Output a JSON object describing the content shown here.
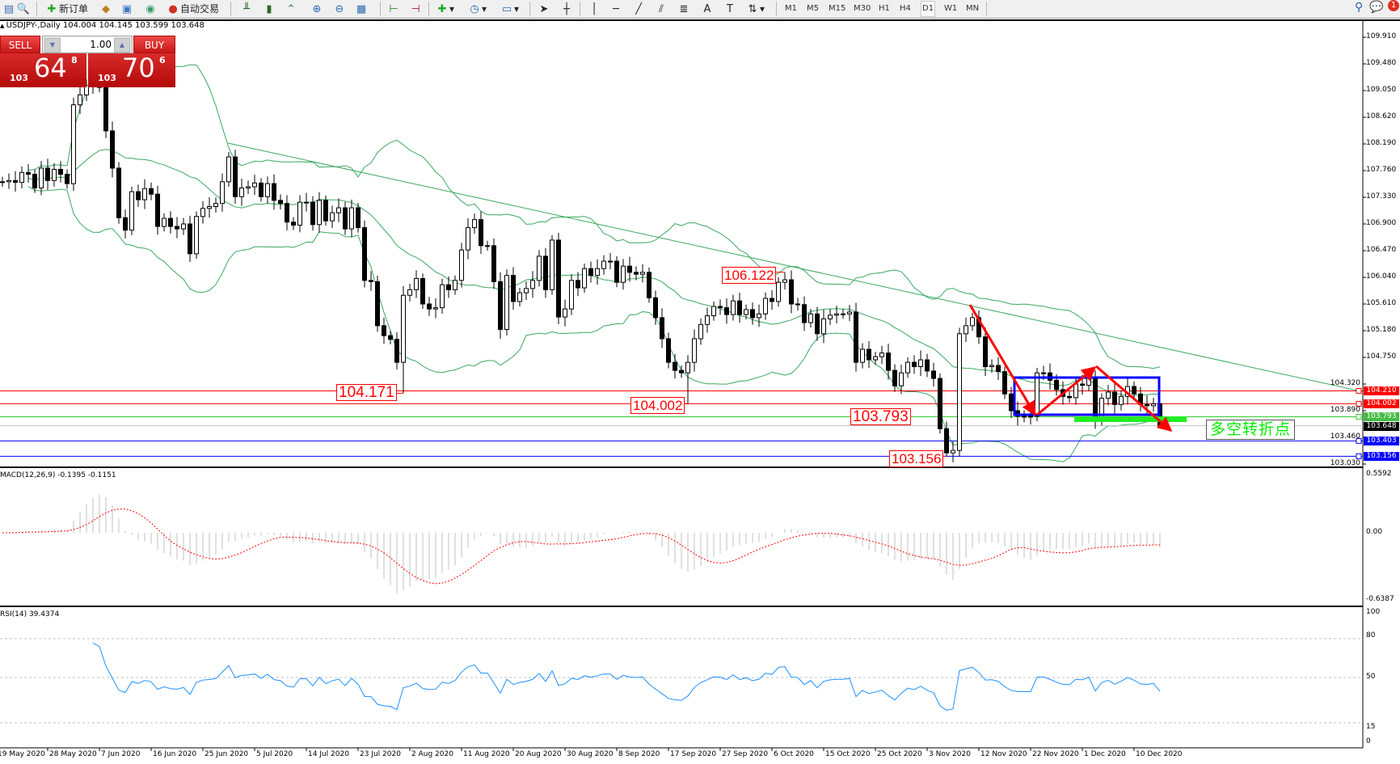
{
  "toolbar": {
    "new_order_label": "新订单",
    "auto_trading_label": "自动交易",
    "icons": [
      "market-watch-icon",
      "data-window-icon",
      "new-order-icon",
      "strategy-tester-icon",
      "terminal-icon",
      "signals-icon",
      "auto-trading-icon",
      "bar-chart-icon",
      "candlesticks-icon",
      "line-chart-icon",
      "zoom-in-icon",
      "zoom-out-icon",
      "tile-windows-icon",
      "auto-scroll-icon",
      "chart-shift-icon",
      "indicators-icon",
      "periods-icon",
      "templates-icon",
      "cursor-icon",
      "crosshair-icon",
      "vertical-line-icon",
      "horizontal-line-icon",
      "trendline-icon",
      "equidistant-channel-icon",
      "fibonacci-icon",
      "text-icon",
      "text-label-icon",
      "arrows-icon",
      "search-icon",
      "notifications-icon"
    ],
    "timeframes": [
      "M1",
      "M5",
      "M15",
      "M30",
      "H1",
      "H4",
      "D1",
      "W1",
      "MN"
    ],
    "active_timeframe": "D1",
    "notification_count": "1"
  },
  "chart": {
    "symbol_header": "USDJPY-,Daily  104.004 104.145 103.599 103.648",
    "oneclick": {
      "sell_label": "SELL",
      "buy_label": "BUY",
      "volume": "1.00",
      "sell_prefix": "103",
      "sell_big": "64",
      "sell_sup": "8",
      "buy_prefix": "103",
      "buy_big": "70",
      "buy_sup": "6"
    },
    "note_text": "多空转折点",
    "macd_label": "MACD(12,26,9) -0.1395 -0.1151",
    "rsi_label": "RSI(14) 39.4374",
    "macd_axis": [
      "0.5592",
      "0.00",
      "-0.6387"
    ],
    "rsi_axis": [
      "100",
      "80",
      "50",
      "15",
      "0"
    ],
    "colors": {
      "bands": "#3aa860",
      "trendline": "#3aa860",
      "rsi": "#1e90ff",
      "macd_hist": "#c0c0c0",
      "signal": "#ff0000",
      "up_line": "#ff0000",
      "box": "#0000ff",
      "pivot_bar": "#22ee22"
    }
  },
  "chart_data": {
    "type": "candlestick",
    "symbol": "USDJPY-",
    "timeframe": "Daily",
    "ylim": [
      103.03,
      109.91
    ],
    "y_ticks": [
      "109.910",
      "109.480",
      "109.050",
      "108.620",
      "108.190",
      "107.760",
      "107.330",
      "106.900",
      "106.470",
      "106.040",
      "105.610",
      "105.180",
      "104.750",
      "104.320",
      "103.890",
      "103.460",
      "103.030"
    ],
    "x_tick_labels": [
      "19 May 2020",
      "28 May 2020",
      "7 Jun 2020",
      "16 Jun 2020",
      "25 Jun 2020",
      "5 Jul 2020",
      "14 Jul 2020",
      "23 Jul 2020",
      "2 Aug 2020",
      "11 Aug 2020",
      "20 Aug 2020",
      "30 Aug 2020",
      "8 Sep 2020",
      "17 Sep 2020",
      "27 Sep 2020",
      "6 Oct 2020",
      "15 Oct 2020",
      "25 Oct 2020",
      "3 Nov 2020",
      "12 Nov 2020",
      "22 Nov 2020",
      "1 Dec 2020",
      "10 Dec 2020"
    ],
    "last_bar": {
      "open": 104.004,
      "high": 104.145,
      "low": 103.599,
      "close": 103.648
    },
    "closes": [
      107.58,
      107.6,
      107.57,
      107.73,
      107.7,
      107.48,
      107.8,
      107.6,
      107.78,
      107.7,
      107.55,
      108.82,
      108.98,
      109.13,
      109.2,
      109.1,
      108.4,
      107.8,
      107.0,
      106.8,
      107.42,
      107.29,
      107.47,
      107.38,
      106.86,
      106.99,
      106.86,
      106.82,
      106.9,
      106.42,
      107.02,
      107.15,
      107.18,
      107.23,
      107.58,
      107.98,
      107.34,
      107.48,
      107.5,
      107.56,
      107.34,
      107.55,
      107.28,
      107.23,
      106.93,
      106.88,
      107.25,
      107.25,
      106.89,
      107.28,
      106.95,
      107.08,
      107.16,
      106.82,
      107.16,
      106.84,
      105.99,
      105.97,
      105.26,
      105.1,
      105.04,
      104.67,
      105.75,
      105.84,
      106.02,
      105.61,
      105.53,
      105.55,
      105.92,
      105.84,
      105.99,
      106.48,
      106.84,
      106.97,
      106.55,
      106.55,
      105.97,
      105.2,
      106.07,
      105.65,
      105.79,
      105.86,
      105.99,
      106.38,
      105.84,
      106.64,
      105.4,
      105.53,
      105.99,
      105.87,
      106.18,
      106.07,
      106.18,
      106.3,
      106.3,
      105.96,
      106.22,
      106.12,
      106.09,
      106.12,
      105.71,
      105.39,
      105.05,
      104.67,
      104.54,
      104.5,
      104.67,
      105.05,
      105.28,
      105.42,
      105.57,
      105.55,
      105.44,
      105.66,
      105.44,
      105.52,
      105.39,
      105.45,
      105.7,
      105.65,
      105.96,
      106.0,
      105.61,
      105.6,
      105.31,
      105.45,
      105.13,
      105.37,
      105.43,
      105.45,
      105.45,
      105.48,
      104.67,
      104.88,
      104.71,
      104.76,
      104.82,
      104.54,
      104.29,
      104.5,
      104.67,
      104.6,
      104.71,
      104.53,
      104.41,
      103.6,
      103.21,
      103.25,
      105.13,
      105.26,
      105.39,
      105.08,
      104.6,
      104.62,
      104.52,
      104.16,
      103.89,
      103.8,
      103.8,
      103.8,
      104.5,
      104.5,
      104.38,
      104.23,
      104.12,
      104.1,
      104.32,
      104.3,
      104.41,
      103.73,
      104.09,
      104.19,
      103.99,
      104.12,
      104.28,
      104.16,
      103.99,
      103.97,
      104.0,
      103.648
    ],
    "marked_points": [
      {
        "text": "106.122",
        "price": 106.122,
        "bar": 121,
        "kind": "high"
      },
      {
        "text": "104.171",
        "price": 104.171,
        "bar": 62,
        "kind": "low"
      },
      {
        "text": "104.002",
        "price": 104.002,
        "bar": 106,
        "kind": "low"
      },
      {
        "text": "103.793",
        "price": 103.793,
        "bar": 131,
        "kind": "marker"
      },
      {
        "text": "103.156",
        "price": 103.156,
        "bar": 146,
        "kind": "low"
      }
    ],
    "horizontal_lines": [
      {
        "price": 104.21,
        "label": "104.210",
        "color": "#ff0000"
      },
      {
        "price": 104.002,
        "label": "104.002",
        "color": "#ff0000"
      },
      {
        "price": 103.793,
        "label": "103.793",
        "color": "#33cc33"
      },
      {
        "price": 103.648,
        "label": "103.648",
        "color": "#000000"
      },
      {
        "price": 103.403,
        "label": "103.403",
        "color": "#0000ff"
      },
      {
        "price": 103.156,
        "label": "103.156",
        "color": "#0000ff"
      }
    ],
    "indicators": [
      "Bollinger Bands",
      "MACD(12,26,9)",
      "RSI(14)"
    ],
    "rsi_levels": [
      80,
      50,
      15
    ]
  }
}
